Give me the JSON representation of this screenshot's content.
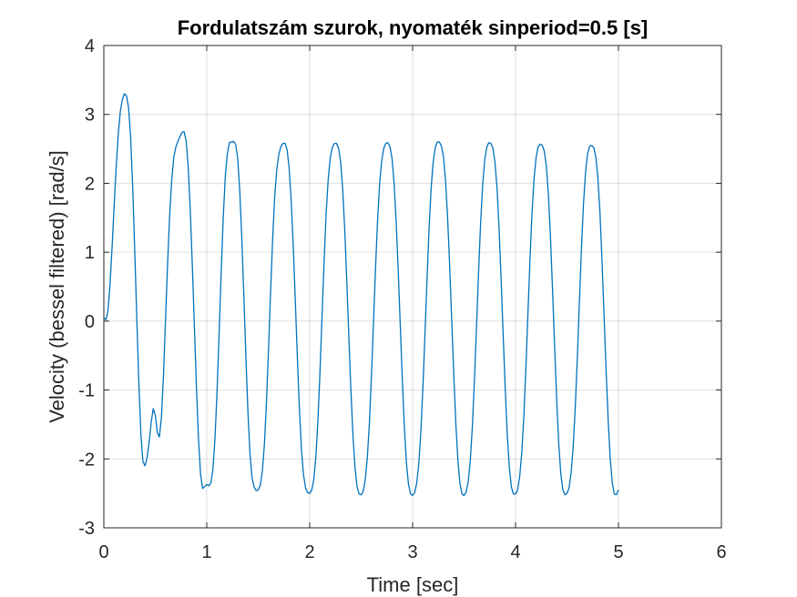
{
  "chart_data": {
    "type": "line",
    "title": "Fordulatszám szurok, nyomaték sinperiod=0.5 [s]",
    "xlabel": "Time [sec]",
    "ylabel": "Velocity (bessel filtered) [rad/s]",
    "xlim": [
      0,
      6
    ],
    "ylim": [
      -3,
      4
    ],
    "xticks": [
      0,
      1,
      2,
      3,
      4,
      5,
      6
    ],
    "yticks": [
      -3,
      -2,
      -1,
      0,
      1,
      2,
      3,
      4
    ],
    "grid": true,
    "legend": "none",
    "series": [
      {
        "color": "#0072BD",
        "x": [
          0,
          0.02,
          0.04,
          0.06,
          0.08,
          0.1,
          0.12,
          0.14,
          0.16,
          0.18,
          0.2,
          0.22,
          0.24,
          0.26,
          0.28,
          0.3,
          0.32,
          0.34,
          0.36,
          0.38,
          0.4,
          0.42,
          0.44,
          0.46,
          0.48,
          0.5,
          0.52,
          0.54,
          0.56,
          0.58,
          0.6,
          0.62,
          0.64,
          0.66,
          0.68,
          0.7,
          0.72,
          0.74,
          0.76,
          0.78,
          0.8,
          0.82,
          0.84,
          0.86,
          0.88,
          0.9,
          0.92,
          0.94,
          0.96,
          0.98,
          1.0,
          1.02,
          1.04,
          1.06,
          1.08,
          1.1,
          1.12,
          1.14,
          1.16,
          1.18,
          1.2,
          1.22,
          1.24,
          1.26,
          1.28,
          1.3,
          1.32,
          1.34,
          1.36,
          1.38,
          1.4,
          1.42,
          1.44,
          1.46,
          1.48,
          1.5,
          1.52,
          1.54,
          1.56,
          1.58,
          1.6,
          1.62,
          1.64,
          1.66,
          1.68,
          1.7,
          1.72,
          1.74,
          1.76,
          1.78,
          1.8,
          1.82,
          1.84,
          1.86,
          1.88,
          1.9,
          1.92,
          1.94,
          1.96,
          1.98,
          2.0,
          2.02,
          2.04,
          2.06,
          2.08,
          2.1,
          2.12,
          2.14,
          2.16,
          2.18,
          2.2,
          2.22,
          2.24,
          2.26,
          2.28,
          2.3,
          2.32,
          2.34,
          2.36,
          2.38,
          2.4,
          2.42,
          2.44,
          2.46,
          2.48,
          2.5,
          2.52,
          2.54,
          2.56,
          2.58,
          2.6,
          2.62,
          2.64,
          2.66,
          2.68,
          2.7,
          2.72,
          2.74,
          2.76,
          2.78,
          2.8,
          2.82,
          2.84,
          2.86,
          2.88,
          2.9,
          2.92,
          2.94,
          2.96,
          2.98,
          3.0,
          3.02,
          3.04,
          3.06,
          3.08,
          3.1,
          3.12,
          3.14,
          3.16,
          3.18,
          3.2,
          3.22,
          3.24,
          3.26,
          3.28,
          3.3,
          3.32,
          3.34,
          3.36,
          3.38,
          3.4,
          3.42,
          3.44,
          3.46,
          3.48,
          3.5,
          3.52,
          3.54,
          3.56,
          3.58,
          3.6,
          3.62,
          3.64,
          3.66,
          3.68,
          3.7,
          3.72,
          3.74,
          3.76,
          3.78,
          3.8,
          3.82,
          3.84,
          3.86,
          3.88,
          3.9,
          3.92,
          3.94,
          3.96,
          3.98,
          4.0,
          4.02,
          4.04,
          4.06,
          4.08,
          4.1,
          4.12,
          4.14,
          4.16,
          4.18,
          4.2,
          4.22,
          4.24,
          4.26,
          4.28,
          4.3,
          4.32,
          4.34,
          4.36,
          4.38,
          4.4,
          4.42,
          4.44,
          4.46,
          4.48,
          4.5,
          4.52,
          4.54,
          4.56,
          4.58,
          4.6,
          4.62,
          4.64,
          4.66,
          4.68,
          4.7,
          4.72,
          4.74,
          4.76,
          4.78,
          4.8,
          4.82,
          4.84,
          4.86,
          4.88,
          4.9,
          4.92,
          4.94,
          4.96,
          4.98,
          5.0
        ],
        "y": [
          0.05,
          0.02,
          0.15,
          0.53,
          1.07,
          1.67,
          2.24,
          2.71,
          3.04,
          3.22,
          3.3,
          3.27,
          3.1,
          2.68,
          1.96,
          1.04,
          0.05,
          -0.89,
          -1.64,
          -2.04,
          -2.1,
          -1.98,
          -1.76,
          -1.47,
          -1.27,
          -1.37,
          -1.62,
          -1.68,
          -1.39,
          -0.77,
          0.05,
          0.86,
          1.55,
          2.06,
          2.38,
          2.53,
          2.61,
          2.68,
          2.74,
          2.75,
          2.61,
          2.23,
          1.6,
          0.8,
          -0.09,
          -0.97,
          -1.72,
          -2.23,
          -2.43,
          -2.4,
          -2.37,
          -2.39,
          -2.35,
          -2.15,
          -1.7,
          -1.02,
          -0.18,
          0.7,
          1.5,
          2.1,
          2.43,
          2.59,
          2.6,
          2.61,
          2.57,
          2.37,
          1.91,
          1.22,
          0.38,
          -0.51,
          -1.32,
          -1.93,
          -2.27,
          -2.41,
          -2.46,
          -2.45,
          -2.38,
          -2.18,
          -1.79,
          -1.18,
          -0.41,
          0.42,
          1.19,
          1.8,
          2.2,
          2.42,
          2.53,
          2.58,
          2.58,
          2.49,
          2.23,
          1.76,
          1.1,
          0.31,
          -0.52,
          -1.27,
          -1.86,
          -2.23,
          -2.42,
          -2.49,
          -2.5,
          -2.45,
          -2.3,
          -1.97,
          -1.44,
          -0.74,
          0.07,
          0.87,
          1.57,
          2.06,
          2.37,
          2.52,
          2.58,
          2.58,
          2.51,
          2.32,
          1.93,
          1.34,
          0.6,
          -0.21,
          -0.99,
          -1.65,
          -2.12,
          -2.4,
          -2.51,
          -2.52,
          -2.47,
          -2.3,
          -1.98,
          -1.48,
          -0.8,
          -0.01,
          0.78,
          1.48,
          2.0,
          2.33,
          2.51,
          2.58,
          2.59,
          2.53,
          2.36,
          2.0,
          1.45,
          0.74,
          -0.06,
          -0.85,
          -1.54,
          -2.06,
          -2.37,
          -2.51,
          -2.53,
          -2.49,
          -2.35,
          -2.07,
          -1.6,
          -0.96,
          -0.19,
          0.61,
          1.35,
          1.93,
          2.31,
          2.52,
          2.6,
          2.6,
          2.54,
          2.38,
          2.04,
          1.5,
          0.8,
          0.01,
          -0.78,
          -1.49,
          -2.02,
          -2.36,
          -2.51,
          -2.53,
          -2.48,
          -2.33,
          -2.03,
          -1.54,
          -0.88,
          -0.11,
          0.68,
          1.4,
          1.96,
          2.33,
          2.52,
          2.59,
          2.58,
          2.51,
          2.31,
          1.93,
          1.34,
          0.6,
          -0.21,
          -0.99,
          -1.66,
          -2.13,
          -2.41,
          -2.51,
          -2.51,
          -2.45,
          -2.26,
          -1.92,
          -1.4,
          -0.7,
          0.09,
          0.88,
          1.57,
          2.07,
          2.38,
          2.53,
          2.57,
          2.55,
          2.46,
          2.24,
          1.82,
          1.2,
          0.43,
          -0.38,
          -1.15,
          -1.78,
          -2.22,
          -2.45,
          -2.52,
          -2.5,
          -2.42,
          -2.2,
          -1.83,
          -1.26,
          -0.54,
          0.26,
          1.04,
          1.7,
          2.16,
          2.43,
          2.54,
          2.55,
          2.52,
          2.38,
          2.08,
          1.58,
          0.88,
          0.08,
          -0.72,
          -1.44,
          -2.0,
          -2.35,
          -2.51,
          -2.52,
          -2.45
        ]
      }
    ]
  }
}
